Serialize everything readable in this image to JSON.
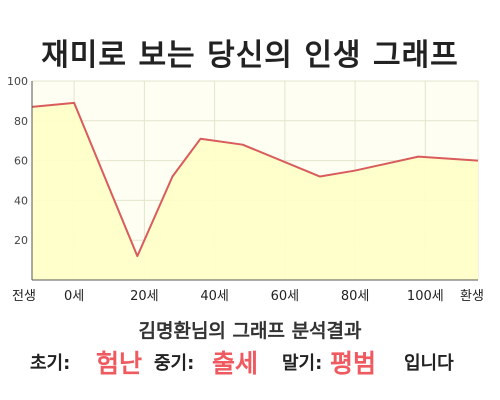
{
  "title": "재미로 보는 당신의 인생 그래프",
  "subtitle": "김명환님의 그래프 분석결과",
  "result": {
    "early_label": "초기:",
    "early_value": "험난",
    "mid_label": "중기:",
    "mid_value": "출세",
    "late_label": "말기:",
    "late_value": "평범",
    "ending": "입니다"
  },
  "colors": {
    "line": "#d95c5c",
    "fill": "#ffffc8",
    "highlight": "#ee5a5f",
    "plot_background": "#fefef2",
    "grid": "#e4e4cc"
  },
  "chart_data": {
    "type": "area",
    "x_ticks": [
      "전생",
      "0세",
      "20세",
      "40세",
      "60세",
      "80세",
      "100세",
      "환생"
    ],
    "y_ticks": [
      20,
      40,
      60,
      80,
      100
    ],
    "ylim": [
      0,
      100
    ],
    "grid": true,
    "series": [
      {
        "points": [
          {
            "x": -12,
            "y": 87
          },
          {
            "x": 0,
            "y": 89
          },
          {
            "x": 18,
            "y": 12
          },
          {
            "x": 28,
            "y": 52
          },
          {
            "x": 36,
            "y": 71
          },
          {
            "x": 48,
            "y": 68
          },
          {
            "x": 70,
            "y": 52
          },
          {
            "x": 80,
            "y": 55
          },
          {
            "x": 98,
            "y": 62
          },
          {
            "x": 115,
            "y": 60
          }
        ]
      }
    ]
  }
}
